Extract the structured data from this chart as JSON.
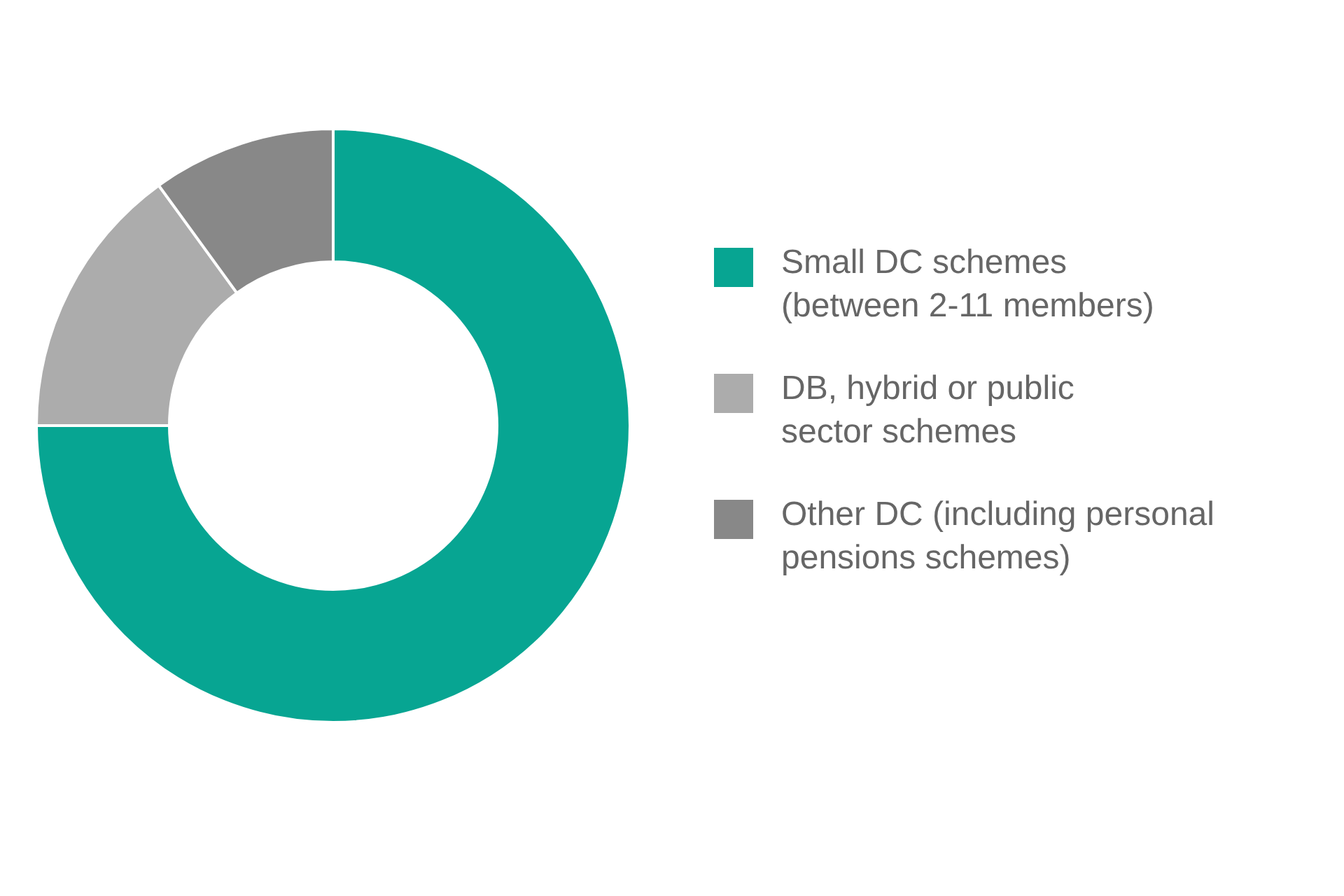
{
  "chart_data": {
    "type": "donut",
    "categories": [
      "Small DC schemes\n(between 2-11 members)",
      "DB, hybrid or public\nsector schemes",
      "Other DC (including personal\npensions schemes)"
    ],
    "values": [
      75,
      15,
      10
    ],
    "colors": [
      "#07a592",
      "#acacac",
      "#888888"
    ],
    "legend": "right"
  }
}
